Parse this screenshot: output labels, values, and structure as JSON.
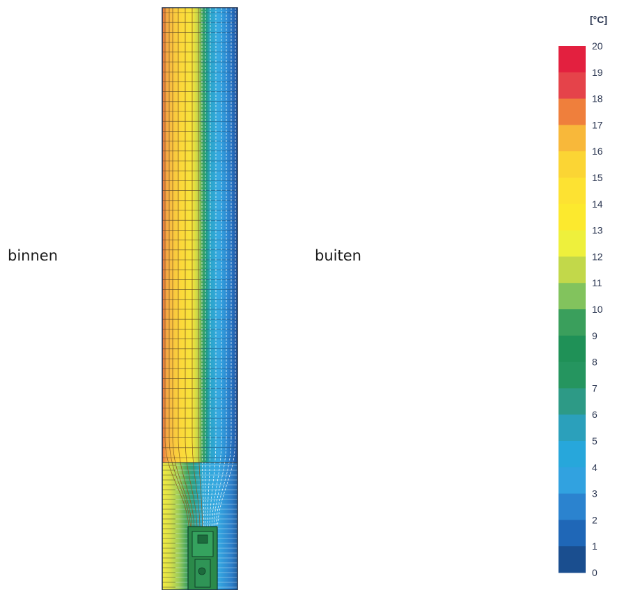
{
  "labels": {
    "inside": "binnen",
    "outside": "buiten"
  },
  "legend": {
    "unit": "[°C]",
    "ticks": [
      "20",
      "19",
      "18",
      "17",
      "16",
      "15",
      "14",
      "13",
      "12",
      "11",
      "10",
      "9",
      "8",
      "7",
      "6",
      "5",
      "4",
      "3",
      "2",
      "1",
      "0"
    ],
    "colors": [
      "#e3203f",
      "#e5434a",
      "#ef7f3c",
      "#f8b83a",
      "#fbd534",
      "#fde232",
      "#fce92e",
      "#eef03c",
      "#c2d84a",
      "#82c35d",
      "#3a9f5c",
      "#1f9157",
      "#25955f",
      "#2d9a86",
      "#2ba0bb",
      "#27a7db",
      "#31a2e0",
      "#2b83cf",
      "#1f67b7",
      "#1a4e8f"
    ]
  }
}
